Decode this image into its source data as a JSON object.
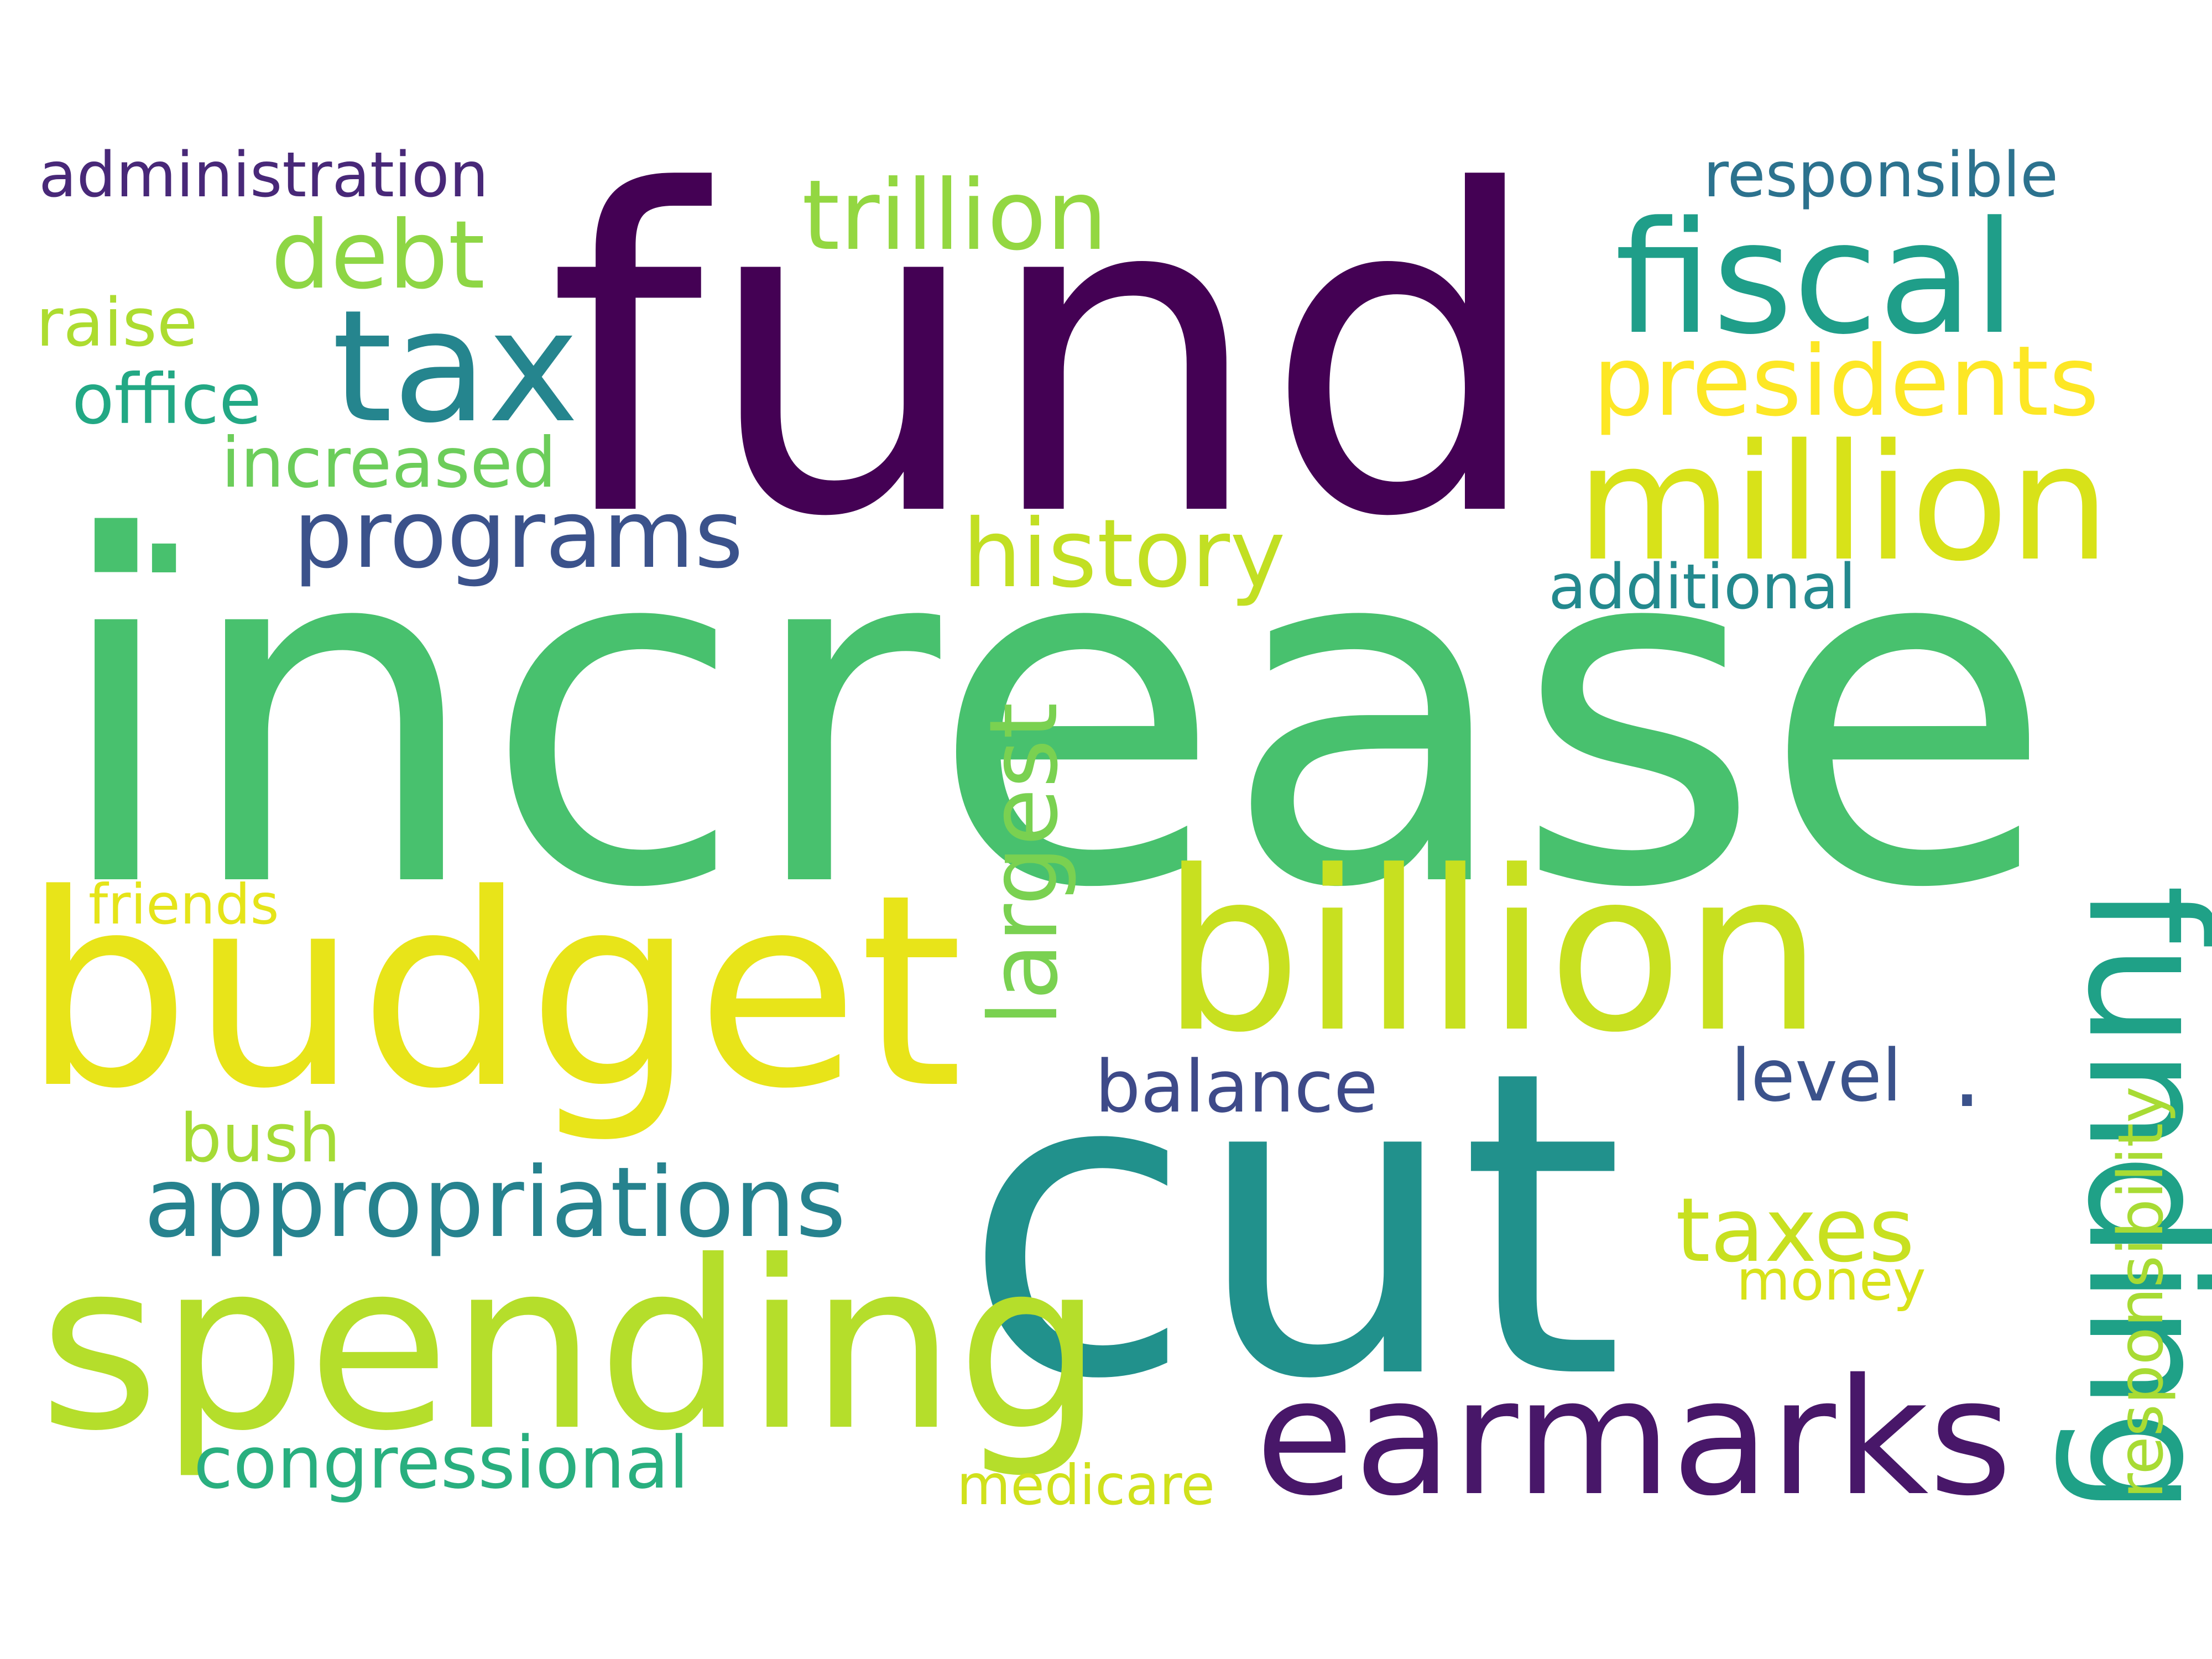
{
  "words": [
    {
      "text": "increase",
      "color": "#48c16e"
    },
    {
      "text": "fund",
      "color": "#440154"
    },
    {
      "text": "cut",
      "color": "#21918c"
    },
    {
      "text": "budget",
      "color": "#e8e419"
    },
    {
      "text": "billion",
      "color": "#c8e020"
    },
    {
      "text": "spending",
      "color": "#b5de2b"
    },
    {
      "text": "funding",
      "color": "#1fa187"
    },
    {
      "text": "million",
      "color": "#d8e219"
    },
    {
      "text": "earmarks",
      "color": "#481769"
    },
    {
      "text": "fiscal",
      "color": "#1f9e89"
    },
    {
      "text": "tax",
      "color": "#25858e"
    },
    {
      "text": "appropriations",
      "color": "#26828e"
    },
    {
      "text": "presidents",
      "color": "#fde725"
    },
    {
      "text": "trillion",
      "color": "#93d741"
    },
    {
      "text": "programs",
      "color": "#3b528b"
    },
    {
      "text": "history",
      "color": "#c2df23"
    },
    {
      "text": "largest",
      "color": "#7ad151"
    },
    {
      "text": "debt",
      "color": "#8ed645"
    },
    {
      "text": "taxes",
      "color": "#c8e020"
    },
    {
      "text": "congressional",
      "color": "#29af7f"
    },
    {
      "text": "balance",
      "color": "#3e4a89"
    },
    {
      "text": "level",
      "color": "#3b528b"
    },
    {
      "text": "increased",
      "color": "#6ccd5a"
    },
    {
      "text": "administration",
      "color": "#482878"
    },
    {
      "text": "office",
      "color": "#22a884"
    },
    {
      "text": "responsible",
      "color": "#2c728e"
    },
    {
      "text": "additional",
      "color": "#23898e"
    },
    {
      "text": "raise",
      "color": "#addc30"
    },
    {
      "text": "bush",
      "color": "#a5db36"
    },
    {
      "text": "responsibility",
      "color": "#a8db34"
    },
    {
      "text": "friends",
      "color": "#e5e419"
    },
    {
      "text": "medicare",
      "color": "#d0e11c"
    },
    {
      "text": "money",
      "color": "#d8e219"
    },
    {
      "text": ".",
      "color": "#48c16e"
    },
    {
      "text": ".",
      "color": "#3b528b"
    }
  ]
}
